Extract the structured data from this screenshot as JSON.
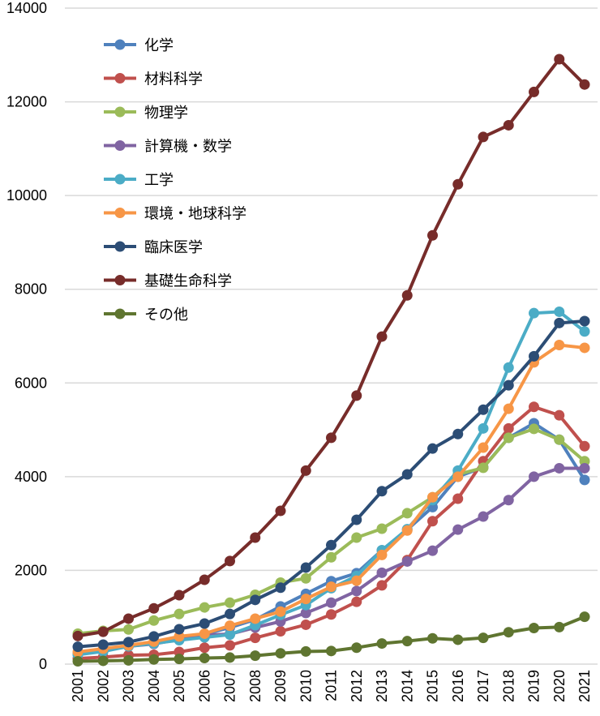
{
  "chart_data": {
    "type": "line",
    "title": "",
    "xlabel": "",
    "ylabel": "",
    "ylim": [
      0,
      14000
    ],
    "yticks": [
      "0",
      "2000",
      "4000",
      "6000",
      "8000",
      "10000",
      "12000",
      "14000"
    ],
    "grid": true,
    "legend_position": "top-left",
    "x": [
      "2001",
      "2002",
      "2003",
      "2004",
      "2005",
      "2006",
      "2007",
      "2008",
      "2009",
      "2010",
      "2011",
      "2012",
      "2013",
      "2014",
      "2015",
      "2016",
      "2017",
      "2018",
      "2019",
      "2020",
      "2021"
    ],
    "series": [
      {
        "name": "化学",
        "color": "#4F81BD",
        "values": [
          220,
          290,
          400,
          460,
          560,
          640,
          780,
          950,
          1230,
          1500,
          1770,
          1940,
          2430,
          2870,
          3350,
          4000,
          4200,
          4830,
          5140,
          4790,
          3930
        ]
      },
      {
        "name": "材料科学",
        "color": "#C0504D",
        "values": [
          120,
          150,
          190,
          200,
          260,
          350,
          400,
          560,
          700,
          840,
          1060,
          1330,
          1680,
          2220,
          3050,
          3530,
          4330,
          5030,
          5490,
          5310,
          4650
        ]
      },
      {
        "name": "物理学",
        "color": "#9BBB59",
        "values": [
          650,
          710,
          740,
          930,
          1070,
          1210,
          1310,
          1480,
          1740,
          1830,
          2280,
          2700,
          2890,
          3220,
          3560,
          4050,
          4190,
          4830,
          5020,
          4790,
          4330
        ]
      },
      {
        "name": "計算機・数学",
        "color": "#8064A2",
        "values": [
          230,
          300,
          380,
          430,
          530,
          620,
          640,
          780,
          910,
          1090,
          1310,
          1560,
          1950,
          2190,
          2420,
          2870,
          3150,
          3500,
          4000,
          4180,
          4180
        ]
      },
      {
        "name": "工学",
        "color": "#4BACC6",
        "values": [
          200,
          270,
          380,
          440,
          510,
          570,
          630,
          830,
          1050,
          1260,
          1620,
          1880,
          2430,
          2880,
          3500,
          4130,
          5030,
          6330,
          7490,
          7520,
          7100
        ]
      },
      {
        "name": "環境・地球科学",
        "color": "#F79646",
        "values": [
          260,
          330,
          400,
          480,
          590,
          650,
          820,
          970,
          1120,
          1390,
          1650,
          1780,
          2330,
          2850,
          3560,
          4000,
          4620,
          5450,
          6440,
          6810,
          6750
        ]
      },
      {
        "name": "臨床医学",
        "color": "#2C4D75",
        "values": [
          370,
          415,
          470,
          590,
          745,
          865,
          1070,
          1370,
          1630,
          2060,
          2540,
          3080,
          3690,
          4050,
          4600,
          4910,
          5430,
          5950,
          6570,
          7280,
          7320
        ]
      },
      {
        "name": "基礎生命科学",
        "color": "#772C2A",
        "values": [
          600,
          690,
          970,
          1190,
          1470,
          1800,
          2200,
          2700,
          3270,
          4130,
          4830,
          5730,
          6990,
          7870,
          9150,
          10240,
          11250,
          11500,
          12210,
          12910,
          12370
        ]
      },
      {
        "name": "その他",
        "color": "#5F7530",
        "values": [
          60,
          70,
          80,
          100,
          110,
          130,
          140,
          180,
          230,
          270,
          280,
          350,
          440,
          490,
          550,
          520,
          560,
          680,
          770,
          790,
          1010
        ]
      }
    ]
  }
}
